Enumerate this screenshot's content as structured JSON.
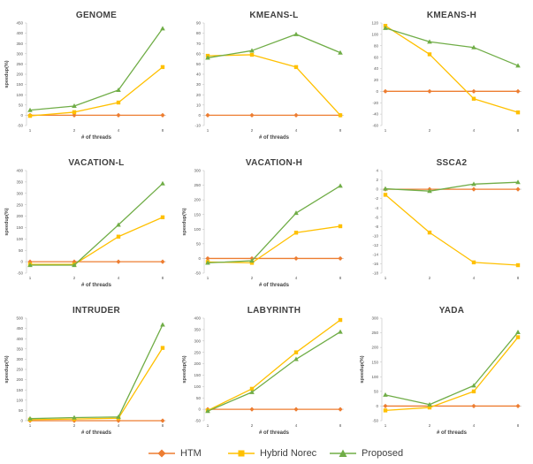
{
  "legend": {
    "items": [
      {
        "name": "HTM",
        "color": "#ED7D31",
        "marker": "diamond"
      },
      {
        "name": "Hybrid Norec",
        "color": "#FFC000",
        "marker": "square"
      },
      {
        "name": "Proposed",
        "color": "#70AD47",
        "marker": "triangle"
      }
    ]
  },
  "chart_data": [
    {
      "type": "line",
      "title": "GENOME",
      "xlabel": "# of threads",
      "ylabel": "speedup(%)",
      "categories": [
        "1",
        "2",
        "4",
        "8"
      ],
      "ylim": [
        -50,
        450
      ],
      "yticks": [
        -50,
        0,
        50,
        100,
        150,
        200,
        250,
        300,
        350,
        400,
        450
      ],
      "series": [
        {
          "name": "HTM",
          "values": [
            0,
            0,
            0,
            0
          ]
        },
        {
          "name": "Hybrid Norec",
          "values": [
            -3,
            15,
            62,
            235
          ]
        },
        {
          "name": "Proposed",
          "values": [
            25,
            45,
            123,
            423
          ]
        }
      ]
    },
    {
      "type": "line",
      "title": "KMEANS-L",
      "xlabel": "# of threads",
      "ylabel": "",
      "categories": [
        "1",
        "2",
        "4",
        "8"
      ],
      "ylim": [
        -10,
        90
      ],
      "yticks": [
        -10,
        0,
        10,
        20,
        30,
        40,
        50,
        60,
        70,
        80,
        90
      ],
      "series": [
        {
          "name": "HTM",
          "values": [
            0,
            0,
            0,
            0
          ]
        },
        {
          "name": "Hybrid Norec",
          "values": [
            58,
            59,
            47,
            0
          ]
        },
        {
          "name": "Proposed",
          "values": [
            56,
            63,
            79,
            61
          ]
        }
      ]
    },
    {
      "type": "line",
      "title": "KMEANS-H",
      "xlabel": "",
      "ylabel": "",
      "categories": [
        "1",
        "2",
        "4",
        "8"
      ],
      "ylim": [
        -60,
        120
      ],
      "yticks": [
        -60,
        -40,
        -20,
        0,
        20,
        40,
        60,
        80,
        100,
        120
      ],
      "series": [
        {
          "name": "HTM",
          "values": [
            0,
            0,
            0,
            0
          ]
        },
        {
          "name": "Hybrid Norec",
          "values": [
            115,
            65,
            -13,
            -37
          ]
        },
        {
          "name": "Proposed",
          "values": [
            111,
            87,
            77,
            45
          ]
        }
      ]
    },
    {
      "type": "line",
      "title": "VACATION-L",
      "xlabel": "# of threads",
      "ylabel": "speedup(%)",
      "categories": [
        "1",
        "2",
        "4",
        "8"
      ],
      "ylim": [
        -50,
        400
      ],
      "yticks": [
        -50,
        0,
        50,
        100,
        150,
        200,
        250,
        300,
        350,
        400
      ],
      "series": [
        {
          "name": "HTM",
          "values": [
            0,
            0,
            0,
            0
          ]
        },
        {
          "name": "Hybrid Norec",
          "values": [
            -12,
            -12,
            110,
            195
          ]
        },
        {
          "name": "Proposed",
          "values": [
            -15,
            -15,
            162,
            343
          ]
        }
      ]
    },
    {
      "type": "line",
      "title": "VACATION-H",
      "xlabel": "# of threads",
      "ylabel": "speedup(%)",
      "categories": [
        "1",
        "2",
        "4",
        "8"
      ],
      "ylim": [
        -50,
        300
      ],
      "yticks": [
        -50,
        0,
        50,
        100,
        150,
        200,
        250,
        300
      ],
      "series": [
        {
          "name": "HTM",
          "values": [
            0,
            0,
            0,
            0
          ]
        },
        {
          "name": "Hybrid Norec",
          "values": [
            -12,
            -15,
            88,
            110
          ]
        },
        {
          "name": "Proposed",
          "values": [
            -15,
            -8,
            155,
            248
          ]
        }
      ]
    },
    {
      "type": "line",
      "title": "SSCA2",
      "xlabel": "",
      "ylabel": "",
      "categories": [
        "1",
        "2",
        "4",
        "8"
      ],
      "ylim": [
        -18,
        4
      ],
      "yticks": [
        -18,
        -16,
        -14,
        -12,
        -10,
        -8,
        -6,
        -4,
        -2,
        0,
        2,
        4
      ],
      "series": [
        {
          "name": "HTM",
          "values": [
            0,
            0,
            0,
            0
          ]
        },
        {
          "name": "Hybrid Norec",
          "values": [
            -1.2,
            -9.3,
            -15.7,
            -16.3
          ]
        },
        {
          "name": "Proposed",
          "values": [
            0.1,
            -0.4,
            1.1,
            1.5
          ]
        }
      ]
    },
    {
      "type": "line",
      "title": "INTRUDER",
      "xlabel": "# of threads",
      "ylabel": "speedup(%)",
      "categories": [
        "1",
        "2",
        "4",
        "8"
      ],
      "ylim": [
        0,
        500
      ],
      "yticks": [
        0,
        50,
        100,
        150,
        200,
        250,
        300,
        350,
        400,
        450,
        500
      ],
      "series": [
        {
          "name": "HTM",
          "values": [
            0,
            0,
            0,
            0
          ]
        },
        {
          "name": "Hybrid Norec",
          "values": [
            5,
            8,
            12,
            355
          ]
        },
        {
          "name": "Proposed",
          "values": [
            10,
            15,
            18,
            468
          ]
        }
      ]
    },
    {
      "type": "line",
      "title": "LABYRINTH",
      "xlabel": "# of threads",
      "ylabel": "speedup(%)",
      "categories": [
        "1",
        "2",
        "4",
        "8"
      ],
      "ylim": [
        -50,
        400
      ],
      "yticks": [
        -50,
        0,
        50,
        100,
        150,
        200,
        250,
        300,
        350,
        400
      ],
      "series": [
        {
          "name": "HTM",
          "values": [
            0,
            0,
            0,
            0
          ]
        },
        {
          "name": "Hybrid Norec",
          "values": [
            -5,
            90,
            250,
            392
          ]
        },
        {
          "name": "Proposed",
          "values": [
            -8,
            75,
            220,
            340
          ]
        }
      ]
    },
    {
      "type": "line",
      "title": "YADA",
      "xlabel": "# of threads",
      "ylabel": "speedup(%)",
      "categories": [
        "1",
        "2",
        "4",
        "8"
      ],
      "ylim": [
        -50,
        300
      ],
      "yticks": [
        -50,
        0,
        50,
        100,
        150,
        200,
        250,
        300
      ],
      "series": [
        {
          "name": "HTM",
          "values": [
            0,
            0,
            0,
            0
          ]
        },
        {
          "name": "Hybrid Norec",
          "values": [
            -15,
            -5,
            50,
            235
          ]
        },
        {
          "name": "Proposed",
          "values": [
            38,
            5,
            70,
            252
          ]
        }
      ]
    }
  ]
}
